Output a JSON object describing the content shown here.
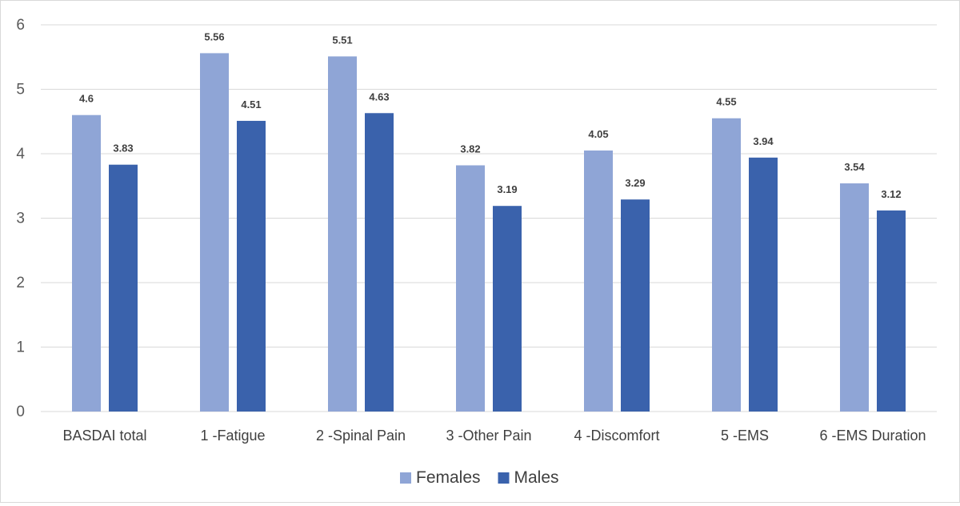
{
  "chart_data": {
    "type": "bar",
    "title": "",
    "xlabel": "",
    "ylabel": "",
    "ylim": [
      0,
      6
    ],
    "yticks": [
      0,
      1,
      2,
      3,
      4,
      5,
      6
    ],
    "grid": true,
    "legend_position": "bottom",
    "categories": [
      "BASDAI total",
      "1 -Fatigue",
      "2 -Spinal Pain",
      "3 -Other Pain",
      "4 -Discomfort",
      "5 -EMS",
      "6 -EMS Duration"
    ],
    "series": [
      {
        "name": "Females",
        "color": "#8FA5D6",
        "values": [
          4.6,
          5.56,
          5.51,
          3.82,
          4.05,
          4.55,
          3.54
        ],
        "labels": [
          "4.6",
          "5.56",
          "5.51",
          "3.82",
          "4.05",
          "4.55",
          "3.54"
        ]
      },
      {
        "name": "Males",
        "color": "#3A62AC",
        "values": [
          3.83,
          4.51,
          4.63,
          3.19,
          3.29,
          3.94,
          3.12
        ],
        "labels": [
          "3.83",
          "4.51",
          "4.63",
          "3.19",
          "3.29",
          "3.94",
          "3.12"
        ]
      }
    ]
  }
}
